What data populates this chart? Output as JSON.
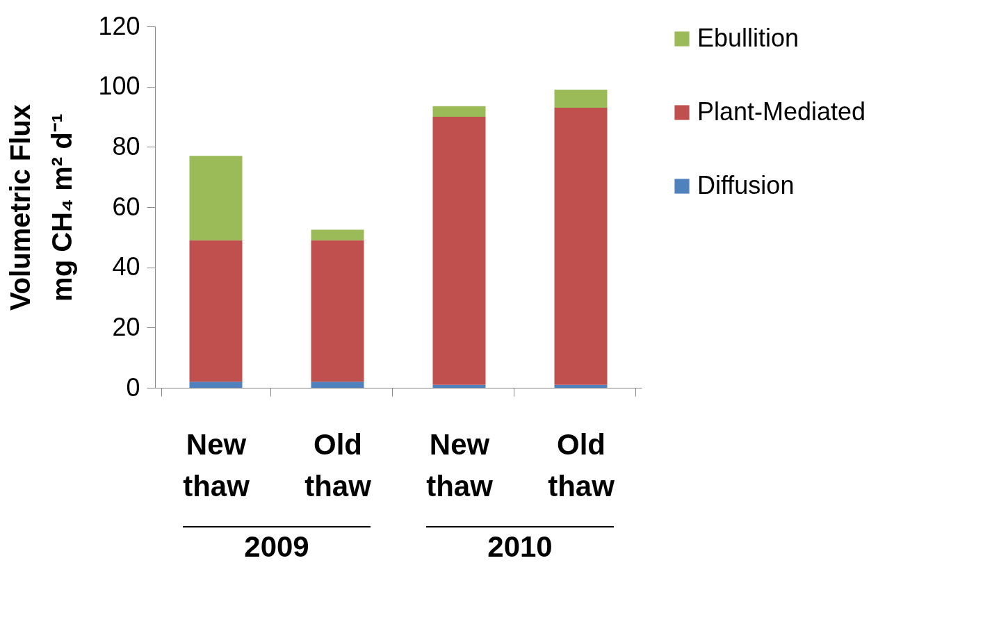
{
  "chart_data": {
    "type": "bar",
    "stacked": true,
    "ylabel": "Volumetric Flux\nmg CH₄ m² d⁻¹",
    "categories": [
      "New thaw",
      "Old thaw",
      "New thaw",
      "Old thaw"
    ],
    "series": [
      {
        "name": "Diffusion",
        "color": "#4f81bd",
        "values": [
          2,
          2,
          1,
          1
        ]
      },
      {
        "name": "Plant-Mediated",
        "color": "#c0504d",
        "values": [
          47,
          47,
          89,
          92
        ]
      },
      {
        "name": "Ebullition",
        "color": "#9bbb59",
        "values": [
          28,
          3.5,
          3.5,
          6
        ]
      }
    ],
    "ylim": [
      0,
      120
    ],
    "yticks": [
      0,
      20,
      40,
      60,
      80,
      100,
      120
    ],
    "grid": false,
    "legend": "top right",
    "annotations": [
      "2009",
      "2010"
    ]
  }
}
